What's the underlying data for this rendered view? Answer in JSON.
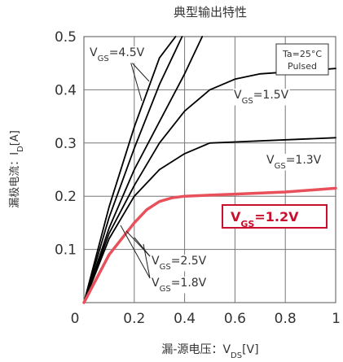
{
  "chart_data": {
    "type": "line",
    "title": "典型输出特性",
    "xlabel": "漏-源电压：V_DS[V]",
    "xlabel_main": "漏-源电压：V",
    "xlabel_sub": "DS",
    "xlabel_unit": "[V]",
    "ylabel": "漏极电流：I_D[A]",
    "ylabel_main": "漏极电流：I",
    "ylabel_sub": "D",
    "ylabel_unit": "[A]",
    "xlim": [
      0,
      1
    ],
    "ylim": [
      0,
      0.5
    ],
    "x_ticks": [
      "0",
      "0.2",
      "0.4",
      "0.6",
      "0.8",
      "1"
    ],
    "y_ticks": [
      "0.1",
      "0.2",
      "0.3",
      "0.4",
      "0.5"
    ],
    "grid": true,
    "annotation_box": [
      "Ta=25°C",
      "Pulsed"
    ],
    "series": [
      {
        "name": "V_GS=4.5V",
        "color": "#000000",
        "x": [
          0,
          0.1,
          0.2,
          0.3,
          0.364
        ],
        "y": [
          0,
          0.18,
          0.33,
          0.46,
          0.5
        ]
      },
      {
        "name": "V_GS=2.5V",
        "color": "#000000",
        "x": [
          0,
          0.1,
          0.2,
          0.3,
          0.39
        ],
        "y": [
          0,
          0.16,
          0.29,
          0.41,
          0.5
        ]
      },
      {
        "name": "V_GS=1.8V",
        "color": "#000000",
        "x": [
          0,
          0.1,
          0.2,
          0.3,
          0.4,
          0.47
        ],
        "y": [
          0,
          0.14,
          0.25,
          0.34,
          0.43,
          0.5
        ]
      },
      {
        "name": "V_GS=1.5V",
        "color": "#000000",
        "x": [
          0,
          0.1,
          0.2,
          0.3,
          0.4,
          0.5,
          0.6,
          0.7,
          1.0
        ],
        "y": [
          0,
          0.13,
          0.22,
          0.3,
          0.36,
          0.4,
          0.42,
          0.43,
          0.44
        ]
      },
      {
        "name": "V_GS=1.3V",
        "color": "#000000",
        "x": [
          0,
          0.1,
          0.2,
          0.3,
          0.4,
          0.5,
          0.6,
          0.7,
          1.0
        ],
        "y": [
          0,
          0.12,
          0.2,
          0.25,
          0.28,
          0.3,
          0.302,
          0.304,
          0.31
        ]
      },
      {
        "name": "V_GS=1.2V",
        "color": "#e8505b",
        "highlight": true,
        "x": [
          0,
          0.1,
          0.2,
          0.25,
          0.3,
          0.35,
          0.4,
          0.6,
          0.8,
          1.0
        ],
        "y": [
          0,
          0.09,
          0.15,
          0.175,
          0.19,
          0.197,
          0.2,
          0.204,
          0.208,
          0.215
        ]
      }
    ],
    "series_labels": [
      {
        "series": "V_GS=4.5V",
        "main": "V",
        "sub": "GS",
        "value": "=4.5V"
      },
      {
        "series": "V_GS=1.5V",
        "main": "V",
        "sub": "GS",
        "value": "=1.5V"
      },
      {
        "series": "V_GS=1.3V",
        "main": "V",
        "sub": "GS",
        "value": "=1.3V"
      },
      {
        "series": "V_GS=1.2V",
        "main": "V",
        "sub": "GS",
        "value": "=1.2V"
      },
      {
        "series": "V_GS=2.5V",
        "main": "V",
        "sub": "GS",
        "value": "=2.5V"
      },
      {
        "series": "V_GS=1.8V",
        "main": "V",
        "sub": "GS",
        "value": "=1.8V"
      }
    ]
  }
}
